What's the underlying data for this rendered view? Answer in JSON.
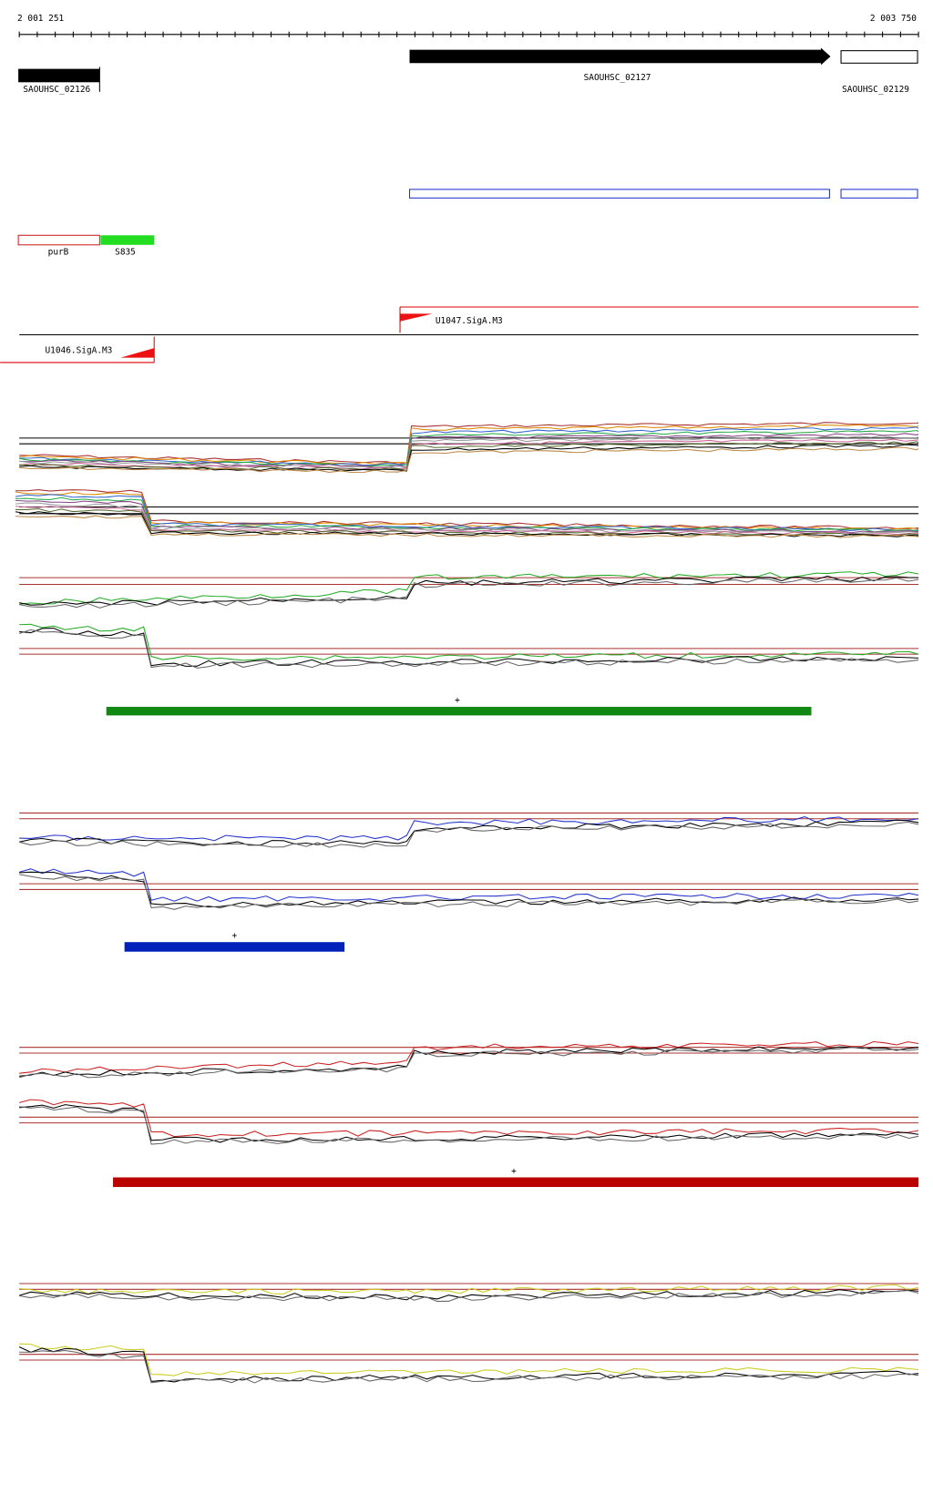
{
  "ruler": {
    "start": "2 001 251",
    "end": "2 003 750"
  },
  "genes": [
    {
      "label": "SAOUHSC_02126"
    },
    {
      "label": "SAOUHSC_02127"
    },
    {
      "label": "SAOUHSC_02129"
    }
  ],
  "features": [
    {
      "label": "purB"
    },
    {
      "label": "S835"
    }
  ],
  "promoters": [
    {
      "label": "U1047.SigA.M3"
    },
    {
      "label": "U1046.SigA.M3"
    }
  ],
  "segments": [
    {
      "strand": "+"
    },
    {
      "strand": "+"
    },
    {
      "strand": "+"
    }
  ]
}
